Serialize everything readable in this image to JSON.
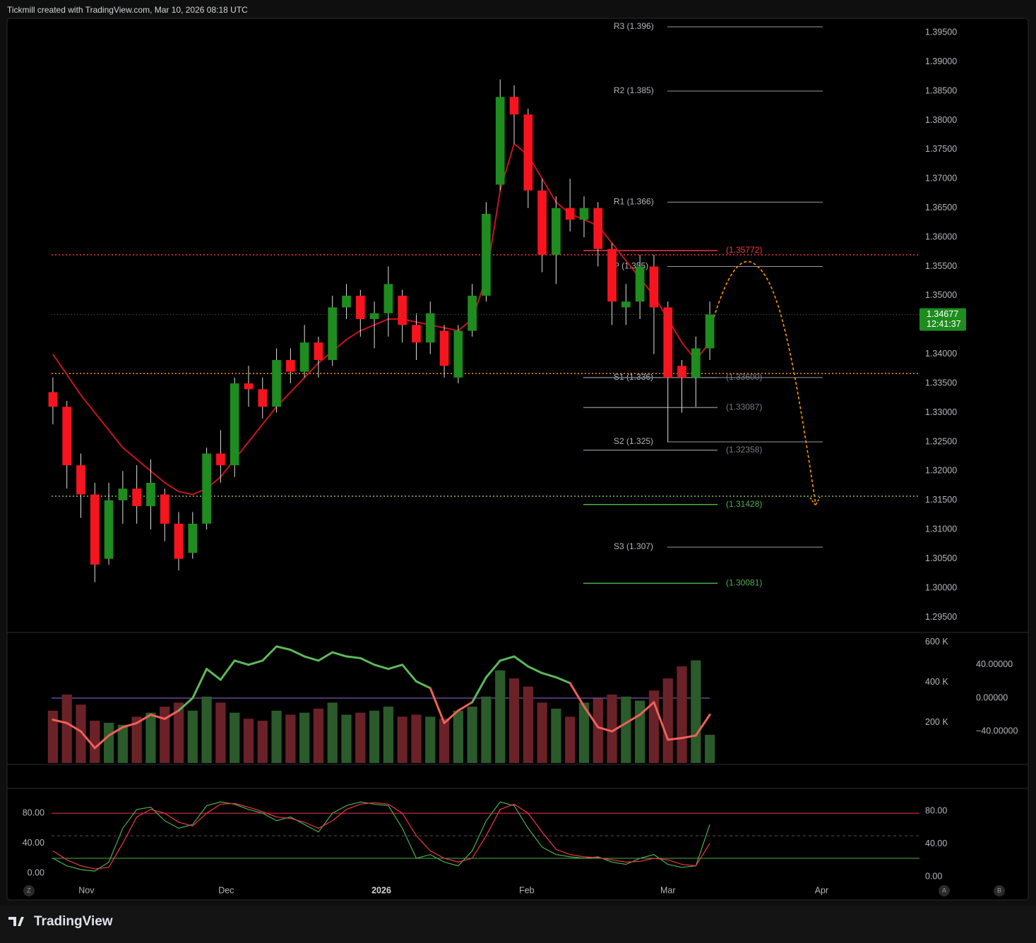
{
  "header": {
    "title": "Tickmill created with TradingView.com, Mar 10, 2026 08:18 UTC"
  },
  "footer": {
    "brand": "TradingView",
    "buttons": [
      "Z",
      "A",
      "B"
    ]
  },
  "chart_data": [
    {
      "type": "candlestick",
      "categories": [
        null,
        null,
        null,
        null,
        null,
        null,
        null,
        null,
        null,
        null,
        null,
        null,
        null,
        null,
        null,
        null,
        null,
        null,
        null,
        null,
        null,
        null,
        null,
        null,
        null,
        null,
        null,
        null,
        null,
        null,
        null,
        null,
        null,
        null,
        null,
        null,
        null,
        null,
        null,
        null,
        null,
        null,
        null,
        null,
        null,
        null,
        null,
        null
      ],
      "open": [
        1.3335,
        1.331,
        1.321,
        1.316,
        1.305,
        1.315,
        1.317,
        1.314,
        1.316,
        1.311,
        1.306,
        1.311,
        1.323,
        1.321,
        1.335,
        1.334,
        1.331,
        1.339,
        1.337,
        1.342,
        1.339,
        1.348,
        1.35,
        1.346,
        1.347,
        1.35,
        1.345,
        1.342,
        1.344,
        1.336,
        1.344,
        1.35,
        1.369,
        1.384,
        1.381,
        1.368,
        1.357,
        1.365,
        1.363,
        1.365,
        1.358,
        1.348,
        1.349,
        1.355,
        1.348,
        1.338,
        1.336,
        1.341
      ],
      "high": [
        1.336,
        1.332,
        1.323,
        1.318,
        1.318,
        1.32,
        1.321,
        1.322,
        1.317,
        1.313,
        1.313,
        1.324,
        1.327,
        1.336,
        1.338,
        1.336,
        1.341,
        1.341,
        1.345,
        1.343,
        1.35,
        1.352,
        1.351,
        1.349,
        1.355,
        1.351,
        1.347,
        1.349,
        1.345,
        1.345,
        1.352,
        1.366,
        1.387,
        1.386,
        1.382,
        1.37,
        1.367,
        1.37,
        1.367,
        1.366,
        1.359,
        1.352,
        1.357,
        1.357,
        1.349,
        1.339,
        1.343,
        1.349
      ],
      "low": [
        1.328,
        1.317,
        1.312,
        1.301,
        1.304,
        1.311,
        1.311,
        1.31,
        1.308,
        1.303,
        1.305,
        1.31,
        1.318,
        1.319,
        1.331,
        1.329,
        1.33,
        1.335,
        1.336,
        1.336,
        1.338,
        1.346,
        1.343,
        1.341,
        1.343,
        1.342,
        1.339,
        1.34,
        1.336,
        1.335,
        1.343,
        1.349,
        1.368,
        1.376,
        1.365,
        1.354,
        1.352,
        1.361,
        1.36,
        1.355,
        1.345,
        1.345,
        1.346,
        1.34,
        1.325,
        1.33,
        1.331,
        1.339
      ],
      "close": [
        1.331,
        1.321,
        1.316,
        1.304,
        1.315,
        1.317,
        1.314,
        1.318,
        1.311,
        1.305,
        1.311,
        1.323,
        1.321,
        1.335,
        1.334,
        1.331,
        1.339,
        1.337,
        1.342,
        1.339,
        1.348,
        1.35,
        1.346,
        1.347,
        1.352,
        1.345,
        1.342,
        1.347,
        1.338,
        1.344,
        1.35,
        1.364,
        1.384,
        1.381,
        1.368,
        1.357,
        1.365,
        1.363,
        1.365,
        1.358,
        1.349,
        1.349,
        1.355,
        1.348,
        1.336,
        1.336,
        1.341,
        1.3468
      ],
      "up_color": "#1e8c1e",
      "down_color": "#f7141e",
      "ma": {
        "color": "#c8141e",
        "values": [
          1.34,
          1.3365,
          1.333,
          1.33,
          1.327,
          1.324,
          1.322,
          1.32,
          1.318,
          1.3165,
          1.316,
          1.317,
          1.319,
          1.322,
          1.325,
          1.328,
          1.331,
          1.3335,
          1.336,
          1.3385,
          1.3405,
          1.3425,
          1.344,
          1.345,
          1.346,
          1.346,
          1.3455,
          1.345,
          1.3445,
          1.344,
          1.346,
          1.353,
          1.368,
          1.376,
          1.374,
          1.37,
          1.366,
          1.364,
          1.363,
          1.362,
          1.359,
          1.356,
          1.353,
          1.35,
          1.346,
          1.342,
          1.339,
          1.342
        ]
      },
      "xlim": [
        -0.5,
        62
      ],
      "ylim": [
        1.2924,
        1.3972
      ],
      "yticks": [
        {
          "value": 1.395,
          "label": "1.39500"
        },
        {
          "value": 1.39,
          "label": "1.39000"
        },
        {
          "value": 1.385,
          "label": "1.38500"
        },
        {
          "value": 1.38,
          "label": "1.38000"
        },
        {
          "value": 1.375,
          "label": "1.37500"
        },
        {
          "value": 1.37,
          "label": "1.37000"
        },
        {
          "value": 1.365,
          "label": "1.36500"
        },
        {
          "value": 1.36,
          "label": "1.36000"
        },
        {
          "value": 1.355,
          "label": "1.35500"
        },
        {
          "value": 1.35,
          "label": "1.35000"
        },
        {
          "value": 1.34,
          "label": "1.34000"
        },
        {
          "value": 1.335,
          "label": "1.33500"
        },
        {
          "value": 1.33,
          "label": "1.33000"
        },
        {
          "value": 1.325,
          "label": "1.32500"
        },
        {
          "value": 1.32,
          "label": "1.32000"
        },
        {
          "value": 1.315,
          "label": "1.31500"
        },
        {
          "value": 1.31,
          "label": "1.31000"
        },
        {
          "value": 1.305,
          "label": "1.30500"
        },
        {
          "value": 1.3,
          "label": "1.30000"
        },
        {
          "value": 1.295,
          "label": "1.29500"
        }
      ],
      "pivots": [
        {
          "label": "R3 (1.396)",
          "value": 1.396
        },
        {
          "label": "R2 (1.385)",
          "value": 1.385
        },
        {
          "label": "R1 (1.366)",
          "value": 1.366
        },
        {
          "label": "P (1.355)",
          "value": 1.355
        },
        {
          "label": "S1 (1.336)",
          "value": 1.336
        },
        {
          "label": "S2 (1.325)",
          "value": 1.325
        },
        {
          "label": "S3 (1.307)",
          "value": 1.307
        }
      ],
      "levels": [
        {
          "label": "(1.35772)",
          "value": 1.35772,
          "color": "#f23645"
        },
        {
          "label": "(1.33600)",
          "value": 1.336,
          "color": "#787b86"
        },
        {
          "label": "(1.33087)",
          "value": 1.33087,
          "color": "#787b86"
        },
        {
          "label": "(1.32358)",
          "value": 1.32358,
          "color": "#787b86"
        },
        {
          "label": "(1.31428)",
          "value": 1.31428,
          "color": "#4caf50"
        },
        {
          "label": "(1.30081)",
          "value": 1.30081,
          "color": "#4caf50"
        }
      ],
      "hlines": [
        {
          "value": 1.357,
          "color": "#f23645"
        },
        {
          "value": 1.3367,
          "color": "#ff9800"
        },
        {
          "value": 1.3157,
          "color": "#8bc34a"
        }
      ],
      "last_price": 1.34677,
      "countdown": "12:41:37",
      "last_color": "#1e8c1e"
    },
    {
      "type": "bar",
      "values": [
        260000,
        340000,
        290000,
        210000,
        200000,
        190000,
        230000,
        250000,
        280000,
        300000,
        260000,
        330000,
        300000,
        250000,
        220000,
        210000,
        260000,
        240000,
        250000,
        270000,
        300000,
        240000,
        250000,
        260000,
        280000,
        230000,
        240000,
        230000,
        220000,
        260000,
        280000,
        330000,
        460000,
        420000,
        380000,
        300000,
        270000,
        230000,
        300000,
        320000,
        340000,
        330000,
        310000,
        360000,
        420000,
        480000,
        510000,
        140000
      ],
      "up_color": "#2b5a2b",
      "down_color": "#6a2228",
      "xlim": [
        -0.5,
        62
      ],
      "ylim": [
        0,
        645000
      ],
      "yticks": [
        {
          "value": 600000,
          "label": "600 K"
        },
        {
          "value": 400000,
          "label": "400 K"
        },
        {
          "value": 200000,
          "label": "200 K"
        }
      ],
      "y2lim": [
        -78,
        78
      ],
      "y2ticks": [
        {
          "value": 40,
          "label": "40.00000"
        },
        {
          "value": 0,
          "label": "0.00000"
        },
        {
          "value": -40,
          "label": "−40.00000"
        }
      ],
      "oscillator": {
        "axis": "y2",
        "up_color": "#5cb85c",
        "down_color": "#f0605a",
        "zero_color": "#9c6ade",
        "values": [
          -26,
          -30,
          -40,
          -60,
          -45,
          -35,
          -30,
          -20,
          -25,
          -15,
          0,
          35,
          22,
          45,
          40,
          45,
          62,
          58,
          50,
          45,
          55,
          50,
          48,
          40,
          35,
          40,
          20,
          12,
          -30,
          -15,
          -5,
          25,
          45,
          50,
          38,
          30,
          25,
          18,
          -10,
          -35,
          -40,
          -30,
          -20,
          -5,
          -50,
          -48,
          -45,
          -20
        ]
      }
    },
    {
      "type": "line",
      "xlim": [
        -0.5,
        62
      ],
      "ylim": [
        -10,
        112
      ],
      "yticks": [
        {
          "value": 80,
          "label": "80.00"
        },
        {
          "value": 40,
          "label": "40.00"
        },
        {
          "value": 0,
          "label": "0.00"
        }
      ],
      "y2lim": [
        -5.2,
        106.7
      ],
      "y2ticks": [
        {
          "value": 80,
          "label": "80.00"
        },
        {
          "value": 40,
          "label": "40.00"
        },
        {
          "value": 0,
          "label": "0.00"
        }
      ],
      "hlines": [
        {
          "value": 80,
          "color": "#f23645",
          "dash": false
        },
        {
          "value": 50,
          "color": "#555",
          "dash": true
        },
        {
          "value": 20,
          "color": "#4caf50",
          "dash": false
        }
      ],
      "series": [
        {
          "color": "#4caf50",
          "values": [
            20,
            10,
            5,
            3,
            15,
            60,
            85,
            88,
            70,
            60,
            65,
            90,
            95,
            92,
            85,
            80,
            70,
            75,
            65,
            55,
            80,
            90,
            95,
            92,
            90,
            60,
            20,
            25,
            15,
            10,
            30,
            70,
            95,
            90,
            60,
            35,
            25,
            22,
            20,
            22,
            15,
            12,
            20,
            25,
            12,
            8,
            10,
            65
          ]
        },
        {
          "color": "#f23645",
          "values": [
            30,
            18,
            10,
            6,
            8,
            40,
            75,
            85,
            80,
            68,
            63,
            80,
            92,
            93,
            88,
            82,
            75,
            73,
            68,
            60,
            70,
            85,
            92,
            94,
            92,
            80,
            50,
            30,
            20,
            15,
            20,
            50,
            85,
            92,
            80,
            55,
            32,
            25,
            22,
            21,
            18,
            15,
            16,
            20,
            18,
            12,
            10,
            40
          ]
        }
      ],
      "xticks": [
        {
          "value": 2.4,
          "label": "Nov"
        },
        {
          "value": 12.4,
          "label": "Dec"
        },
        {
          "value": 23.5,
          "label": "2026"
        },
        {
          "value": 33.9,
          "label": "Feb"
        },
        {
          "value": 44,
          "label": "Mar"
        },
        {
          "value": 55,
          "label": "Apr"
        }
      ]
    }
  ]
}
